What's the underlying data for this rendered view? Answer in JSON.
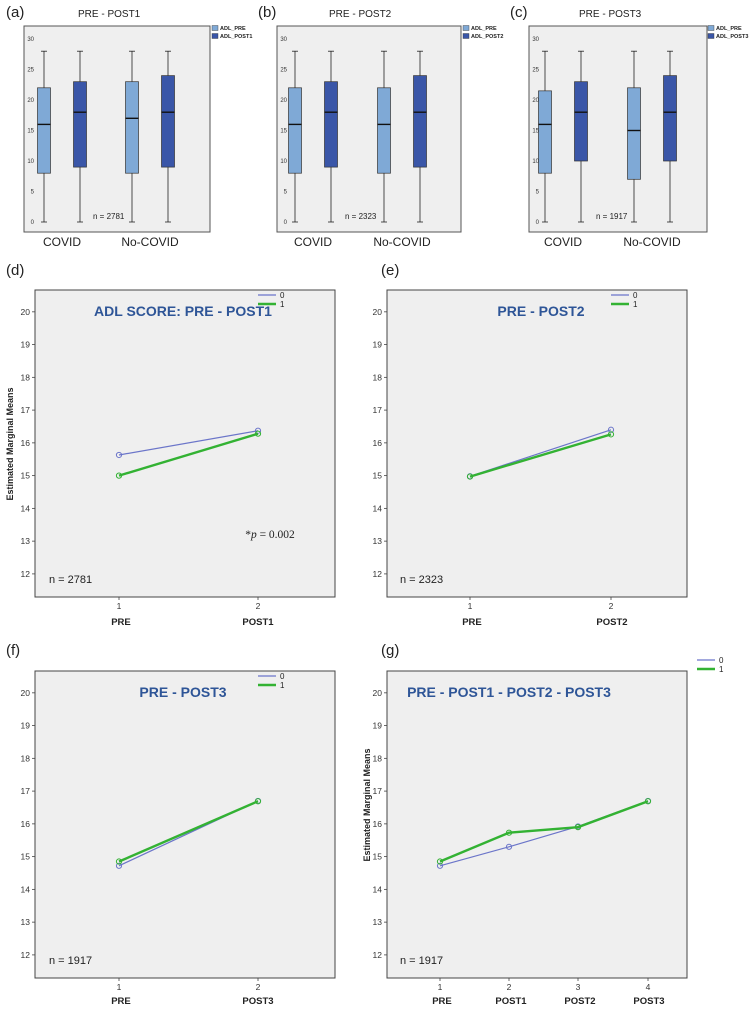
{
  "colors": {
    "pre_box": "#7fa9d6",
    "post_box": "#3a56a8",
    "line_0": "#6b75c9",
    "line_1": "#33b233",
    "panel_bg": "#efefef",
    "title_blue": "#2e5597"
  },
  "chart_data": [
    {
      "type": "box",
      "panel_label": "(a)",
      "title": "PRE - POST1",
      "legend": [
        "ADL_PRE",
        "ADL_POST1"
      ],
      "categories": [
        "COVID",
        "No-COVID"
      ],
      "yticks": [
        "0",
        "5",
        "10",
        "15",
        "20",
        "25",
        "30"
      ],
      "ylim": [
        0,
        30
      ],
      "n_label": "n = 2781",
      "boxes": [
        {
          "min": 0,
          "q1": 8,
          "median": 16,
          "q3": 22,
          "max": 28
        },
        {
          "min": 0,
          "q1": 9,
          "median": 18,
          "q3": 23,
          "max": 28
        },
        {
          "min": 0,
          "q1": 8,
          "median": 17,
          "q3": 23,
          "max": 28
        },
        {
          "min": 0,
          "q1": 9,
          "median": 18,
          "q3": 24,
          "max": 28
        }
      ]
    },
    {
      "type": "box",
      "panel_label": "(b)",
      "title": "PRE - POST2",
      "legend": [
        "ADL_PRE",
        "ADL_POST2"
      ],
      "categories": [
        "COVID",
        "No-COVID"
      ],
      "yticks": [
        "0",
        "5",
        "10",
        "15",
        "20",
        "25",
        "30"
      ],
      "ylim": [
        0,
        30
      ],
      "n_label": "n = 2323",
      "boxes": [
        {
          "min": 0,
          "q1": 8,
          "median": 16,
          "q3": 22,
          "max": 28
        },
        {
          "min": 0,
          "q1": 9,
          "median": 18,
          "q3": 23,
          "max": 28
        },
        {
          "min": 0,
          "q1": 8,
          "median": 16,
          "q3": 22,
          "max": 28
        },
        {
          "min": 0,
          "q1": 9,
          "median": 18,
          "q3": 24,
          "max": 28
        }
      ]
    },
    {
      "type": "box",
      "panel_label": "(c)",
      "title": "PRE - POST3",
      "legend": [
        "ADL_PRE",
        "ADL_POST3"
      ],
      "categories": [
        "COVID",
        "No-COVID"
      ],
      "yticks": [
        "0",
        "5",
        "10",
        "15",
        "20",
        "25",
        "30"
      ],
      "ylim": [
        0,
        30
      ],
      "n_label": "n = 1917",
      "boxes": [
        {
          "min": 0,
          "q1": 8,
          "median": 16,
          "q3": 21.5,
          "max": 28
        },
        {
          "min": 0,
          "q1": 10,
          "median": 18,
          "q3": 23,
          "max": 28
        },
        {
          "min": 0,
          "q1": 7,
          "median": 15,
          "q3": 22,
          "max": 28
        },
        {
          "min": 0,
          "q1": 10,
          "median": 18,
          "q3": 24,
          "max": 28
        }
      ]
    },
    {
      "type": "line",
      "panel_label": "(d)",
      "title": "ADL SCORE: PRE - POST1",
      "ylabel": "Estimated Marginal Means",
      "x_ticks": [
        "1",
        "2"
      ],
      "x_names": [
        "PRE",
        "POST1"
      ],
      "yticks": [
        "12",
        "13",
        "14",
        "15",
        "16",
        "17",
        "18",
        "19",
        "20"
      ],
      "ylim": [
        11.6,
        20.3
      ],
      "n_label": "n = 2781",
      "annotation": "*p = 0.002",
      "legend": [
        "0",
        "1"
      ],
      "series": [
        {
          "name": "0",
          "values": [
            15.63,
            16.37
          ]
        },
        {
          "name": "1",
          "values": [
            15.0,
            16.28
          ]
        }
      ]
    },
    {
      "type": "line",
      "panel_label": "(e)",
      "title": "PRE - POST2",
      "ylabel": "",
      "x_ticks": [
        "1",
        "2"
      ],
      "x_names": [
        "PRE",
        "POST2"
      ],
      "yticks": [
        "12",
        "13",
        "14",
        "15",
        "16",
        "17",
        "18",
        "19",
        "20"
      ],
      "ylim": [
        11.6,
        20.3
      ],
      "n_label": "n = 2323",
      "annotation": "",
      "legend": [
        "0",
        "1"
      ],
      "series": [
        {
          "name": "0",
          "values": [
            14.98,
            16.4
          ]
        },
        {
          "name": "1",
          "values": [
            14.97,
            16.26
          ]
        }
      ]
    },
    {
      "type": "line",
      "panel_label": "(f)",
      "title": "PRE - POST3",
      "ylabel": "",
      "x_ticks": [
        "1",
        "2"
      ],
      "x_names": [
        "PRE",
        "POST3"
      ],
      "yticks": [
        "12",
        "13",
        "14",
        "15",
        "16",
        "17",
        "18",
        "19",
        "20"
      ],
      "ylim": [
        11.6,
        20.3
      ],
      "n_label": "n = 1917",
      "annotation": "",
      "legend": [
        "0",
        "1"
      ],
      "series": [
        {
          "name": "0",
          "values": [
            14.72,
            16.7
          ]
        },
        {
          "name": "1",
          "values": [
            14.85,
            16.69
          ]
        }
      ]
    },
    {
      "type": "line",
      "panel_label": "(g)",
      "title": "PRE - POST1 - POST2 - POST3",
      "ylabel": "Estimated Marginal Means",
      "x_ticks": [
        "1",
        "2",
        "3",
        "4"
      ],
      "x_names": [
        "PRE",
        "POST1",
        "POST2",
        "POST3"
      ],
      "yticks": [
        "12",
        "13",
        "14",
        "15",
        "16",
        "17",
        "18",
        "19",
        "20"
      ],
      "ylim": [
        11.6,
        20.3
      ],
      "n_label": "n = 1917",
      "annotation": "",
      "legend": [
        "0",
        "1"
      ],
      "series": [
        {
          "name": "0",
          "values": [
            14.72,
            15.3,
            15.92,
            16.7
          ]
        },
        {
          "name": "1",
          "values": [
            14.85,
            15.73,
            15.9,
            16.69
          ]
        }
      ]
    }
  ]
}
